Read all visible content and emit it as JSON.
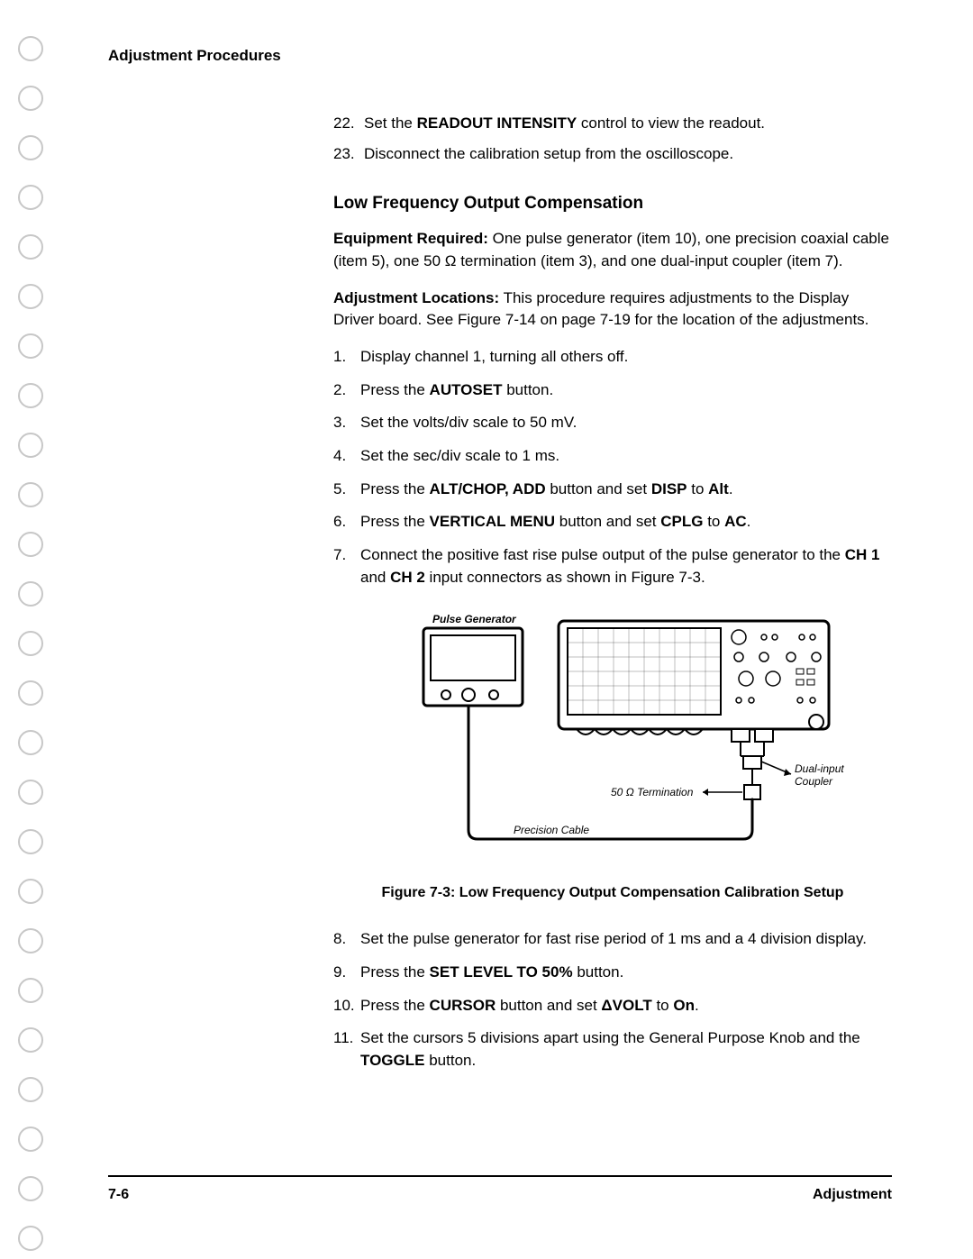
{
  "header": {
    "title": "Adjustment Procedures"
  },
  "cont_steps": [
    {
      "n": "22.",
      "pre": "Set the ",
      "bold": "READOUT INTENSITY",
      "post": " control to view the readout."
    },
    {
      "n": "23.",
      "pre": "Disconnect the calibration setup from the oscilloscope.",
      "bold": "",
      "post": ""
    }
  ],
  "section": {
    "title": "Low Frequency Output Compensation",
    "equip_label": "Equipment Required:",
    "equip_text": " One pulse generator (item 10), one precision coaxial cable (item 5), one 50 Ω termination (item 3), and one dual-input coupler (item 7).",
    "adj_label": "Adjustment Locations:",
    "adj_text": " This procedure requires adjustments to the Display Driver board. See Figure 7-14 on page 7-19 for the location of the adjustments."
  },
  "steps_a": [
    {
      "n": "1.",
      "segs": [
        [
          "",
          "Display channel 1, turning all others off."
        ]
      ]
    },
    {
      "n": "2.",
      "segs": [
        [
          "",
          "Press the "
        ],
        [
          "b",
          "AUTOSET"
        ],
        [
          "",
          " button."
        ]
      ]
    },
    {
      "n": "3.",
      "segs": [
        [
          "",
          "Set the volts/div scale to 50 mV."
        ]
      ]
    },
    {
      "n": "4.",
      "segs": [
        [
          "",
          "Set the sec/div scale to 1 ms."
        ]
      ]
    },
    {
      "n": "5.",
      "segs": [
        [
          "",
          "Press the "
        ],
        [
          "b",
          "ALT/CHOP, ADD"
        ],
        [
          "",
          " button and set "
        ],
        [
          "b",
          "DISP"
        ],
        [
          "",
          " to "
        ],
        [
          "b",
          "Alt"
        ],
        [
          "",
          "."
        ]
      ]
    },
    {
      "n": "6.",
      "segs": [
        [
          "",
          "Press the "
        ],
        [
          "b",
          "VERTICAL MENU"
        ],
        [
          "",
          " button and set "
        ],
        [
          "b",
          "CPLG"
        ],
        [
          "",
          " to "
        ],
        [
          "b",
          "AC"
        ],
        [
          "",
          "."
        ]
      ]
    },
    {
      "n": "7.",
      "segs": [
        [
          "",
          "Connect the positive fast rise pulse output of the pulse generator to the "
        ],
        [
          "b",
          "CH 1"
        ],
        [
          "",
          " and "
        ],
        [
          "b",
          "CH 2"
        ],
        [
          "",
          " input connectors as shown in Figure 7-3."
        ]
      ]
    }
  ],
  "figure": {
    "pulse_gen": "Pulse Generator",
    "dual_input": "Dual-input Coupler",
    "termination": "50 Ω Termination",
    "precision_cable": "Precision Cable",
    "caption": "Figure 7-3:  Low Frequency Output Compensation Calibration Setup",
    "stroke": "#000000",
    "fill": "#ffffff",
    "font_family": "Arial, Helvetica, sans-serif",
    "label_fontsize": 12
  },
  "steps_b": [
    {
      "n": "8.",
      "segs": [
        [
          "",
          "Set the pulse generator for fast rise period of 1 ms and a 4 division display."
        ]
      ]
    },
    {
      "n": "9.",
      "segs": [
        [
          "",
          "Press the "
        ],
        [
          "b",
          "SET LEVEL TO 50%"
        ],
        [
          "",
          " button."
        ]
      ]
    },
    {
      "n": "10.",
      "segs": [
        [
          "",
          "Press the "
        ],
        [
          "b",
          "CURSOR"
        ],
        [
          "",
          " button and set "
        ],
        [
          "b",
          "ΔVOLT"
        ],
        [
          "",
          " to "
        ],
        [
          "b",
          "On"
        ],
        [
          "",
          "."
        ]
      ]
    },
    {
      "n": "11.",
      "segs": [
        [
          "",
          "Set the cursors 5 divisions apart using the General Purpose Knob and the "
        ],
        [
          "b",
          "TOGGLE"
        ],
        [
          "",
          " button."
        ]
      ]
    }
  ],
  "footer": {
    "left": "7-6",
    "right": "Adjustment"
  }
}
